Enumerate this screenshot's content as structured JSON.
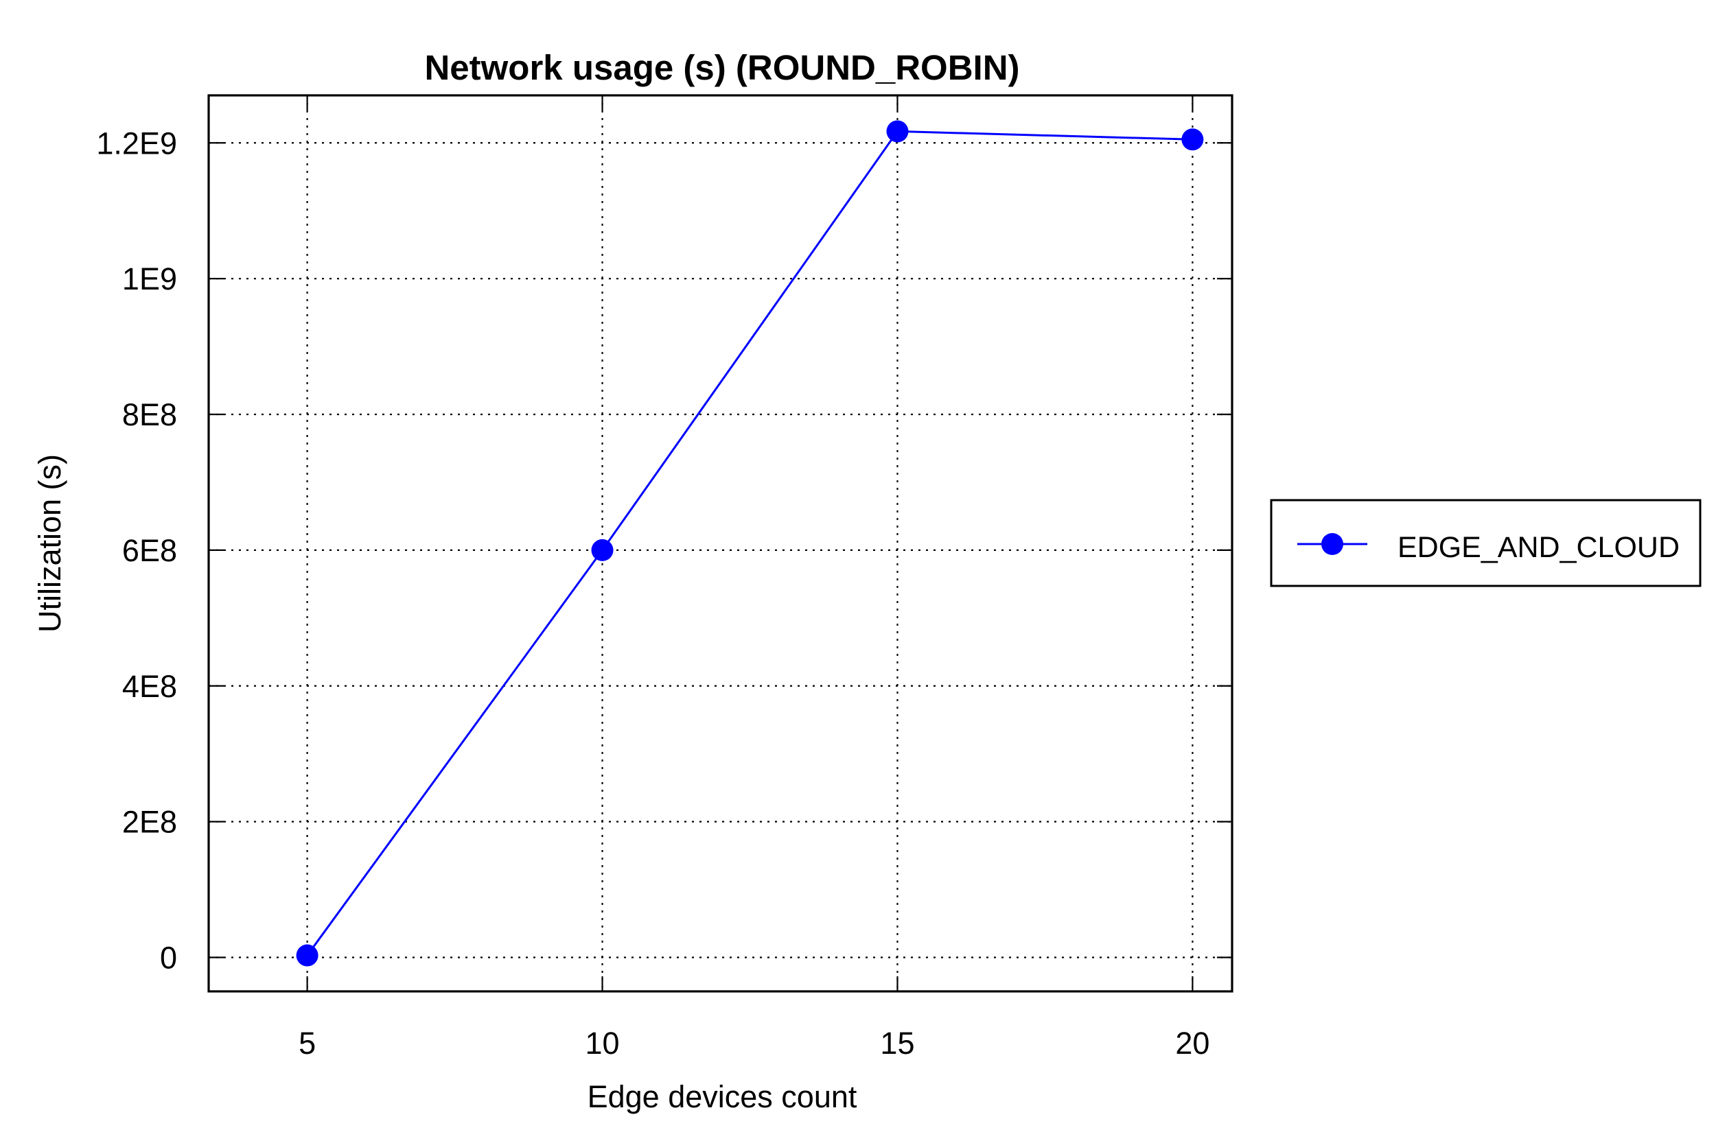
{
  "chart_data": {
    "type": "line",
    "title": "Network usage (s) (ROUND_ROBIN)",
    "xlabel": "Edge devices count",
    "ylabel": "Utilization (s)",
    "x_ticks": [
      "5",
      "10",
      "15",
      "20"
    ],
    "y_ticks": [
      "0",
      "2E8",
      "4E8",
      "6E8",
      "8E8",
      "1E9",
      "1.2E9"
    ],
    "xlim": [
      3.33,
      20.67
    ],
    "ylim": [
      -50000000,
      1270000000
    ],
    "grid": true,
    "legend_position": "right",
    "series": [
      {
        "name": "EDGE_AND_CLOUD",
        "color": "#0000ff",
        "x": [
          5,
          10,
          15,
          20
        ],
        "y": [
          3000000,
          600000000,
          1217000000,
          1205000000
        ]
      }
    ]
  }
}
